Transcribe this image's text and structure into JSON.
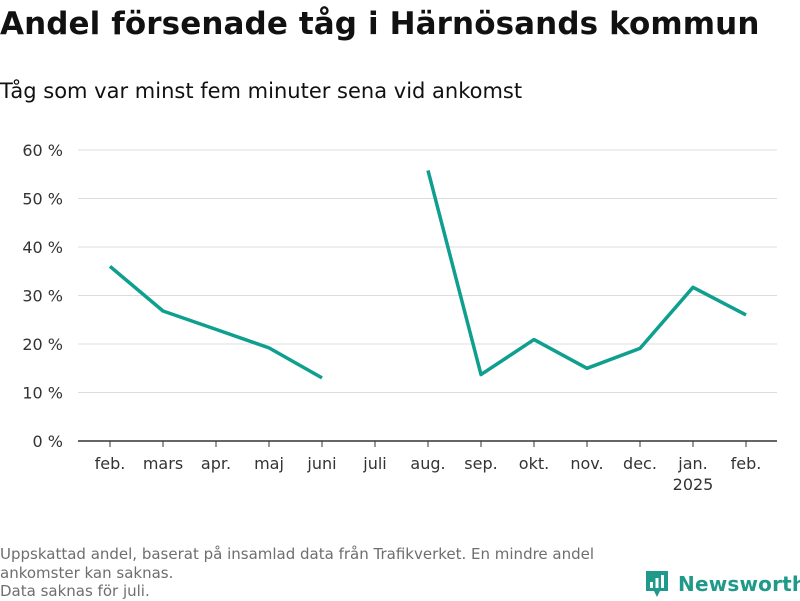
{
  "title": "Andel försenade tåg i Härnösands kommun",
  "subtitle": "Tåg som var minst fem minuter sena vid ankomst",
  "chart_data": {
    "type": "line",
    "categories": [
      "feb.",
      "mars",
      "apr.",
      "maj",
      "juni",
      "juli",
      "aug.",
      "sep.",
      "okt.",
      "nov.",
      "dec.",
      "jan.",
      "feb."
    ],
    "category_sublabels": [
      "",
      "",
      "",
      "",
      "",
      "",
      "",
      "",
      "",
      "",
      "",
      "2025",
      ""
    ],
    "values": [
      36,
      26.8,
      23,
      19.2,
      13,
      null,
      55.8,
      13.7,
      20.9,
      15,
      19.1,
      31.7,
      26
    ],
    "yticks": [
      "0 %",
      "10 %",
      "20 %",
      "30 %",
      "40 %",
      "50 %",
      "60 %"
    ],
    "ylim": [
      0,
      60
    ],
    "xlabel": "",
    "ylabel": "",
    "grid": true,
    "line_color": "#0f9f8f"
  },
  "footer": {
    "note_line1": "Uppskattad andel, baserat på insamlad data från Trafikverket. En mindre andel",
    "note_line2": "ankomster kan saknas.",
    "note_line3": "Data saknas för juli."
  },
  "brand": {
    "name": "Newsworthy",
    "icon": "newsworthy-logo-icon",
    "color": "#1f9a8a"
  }
}
